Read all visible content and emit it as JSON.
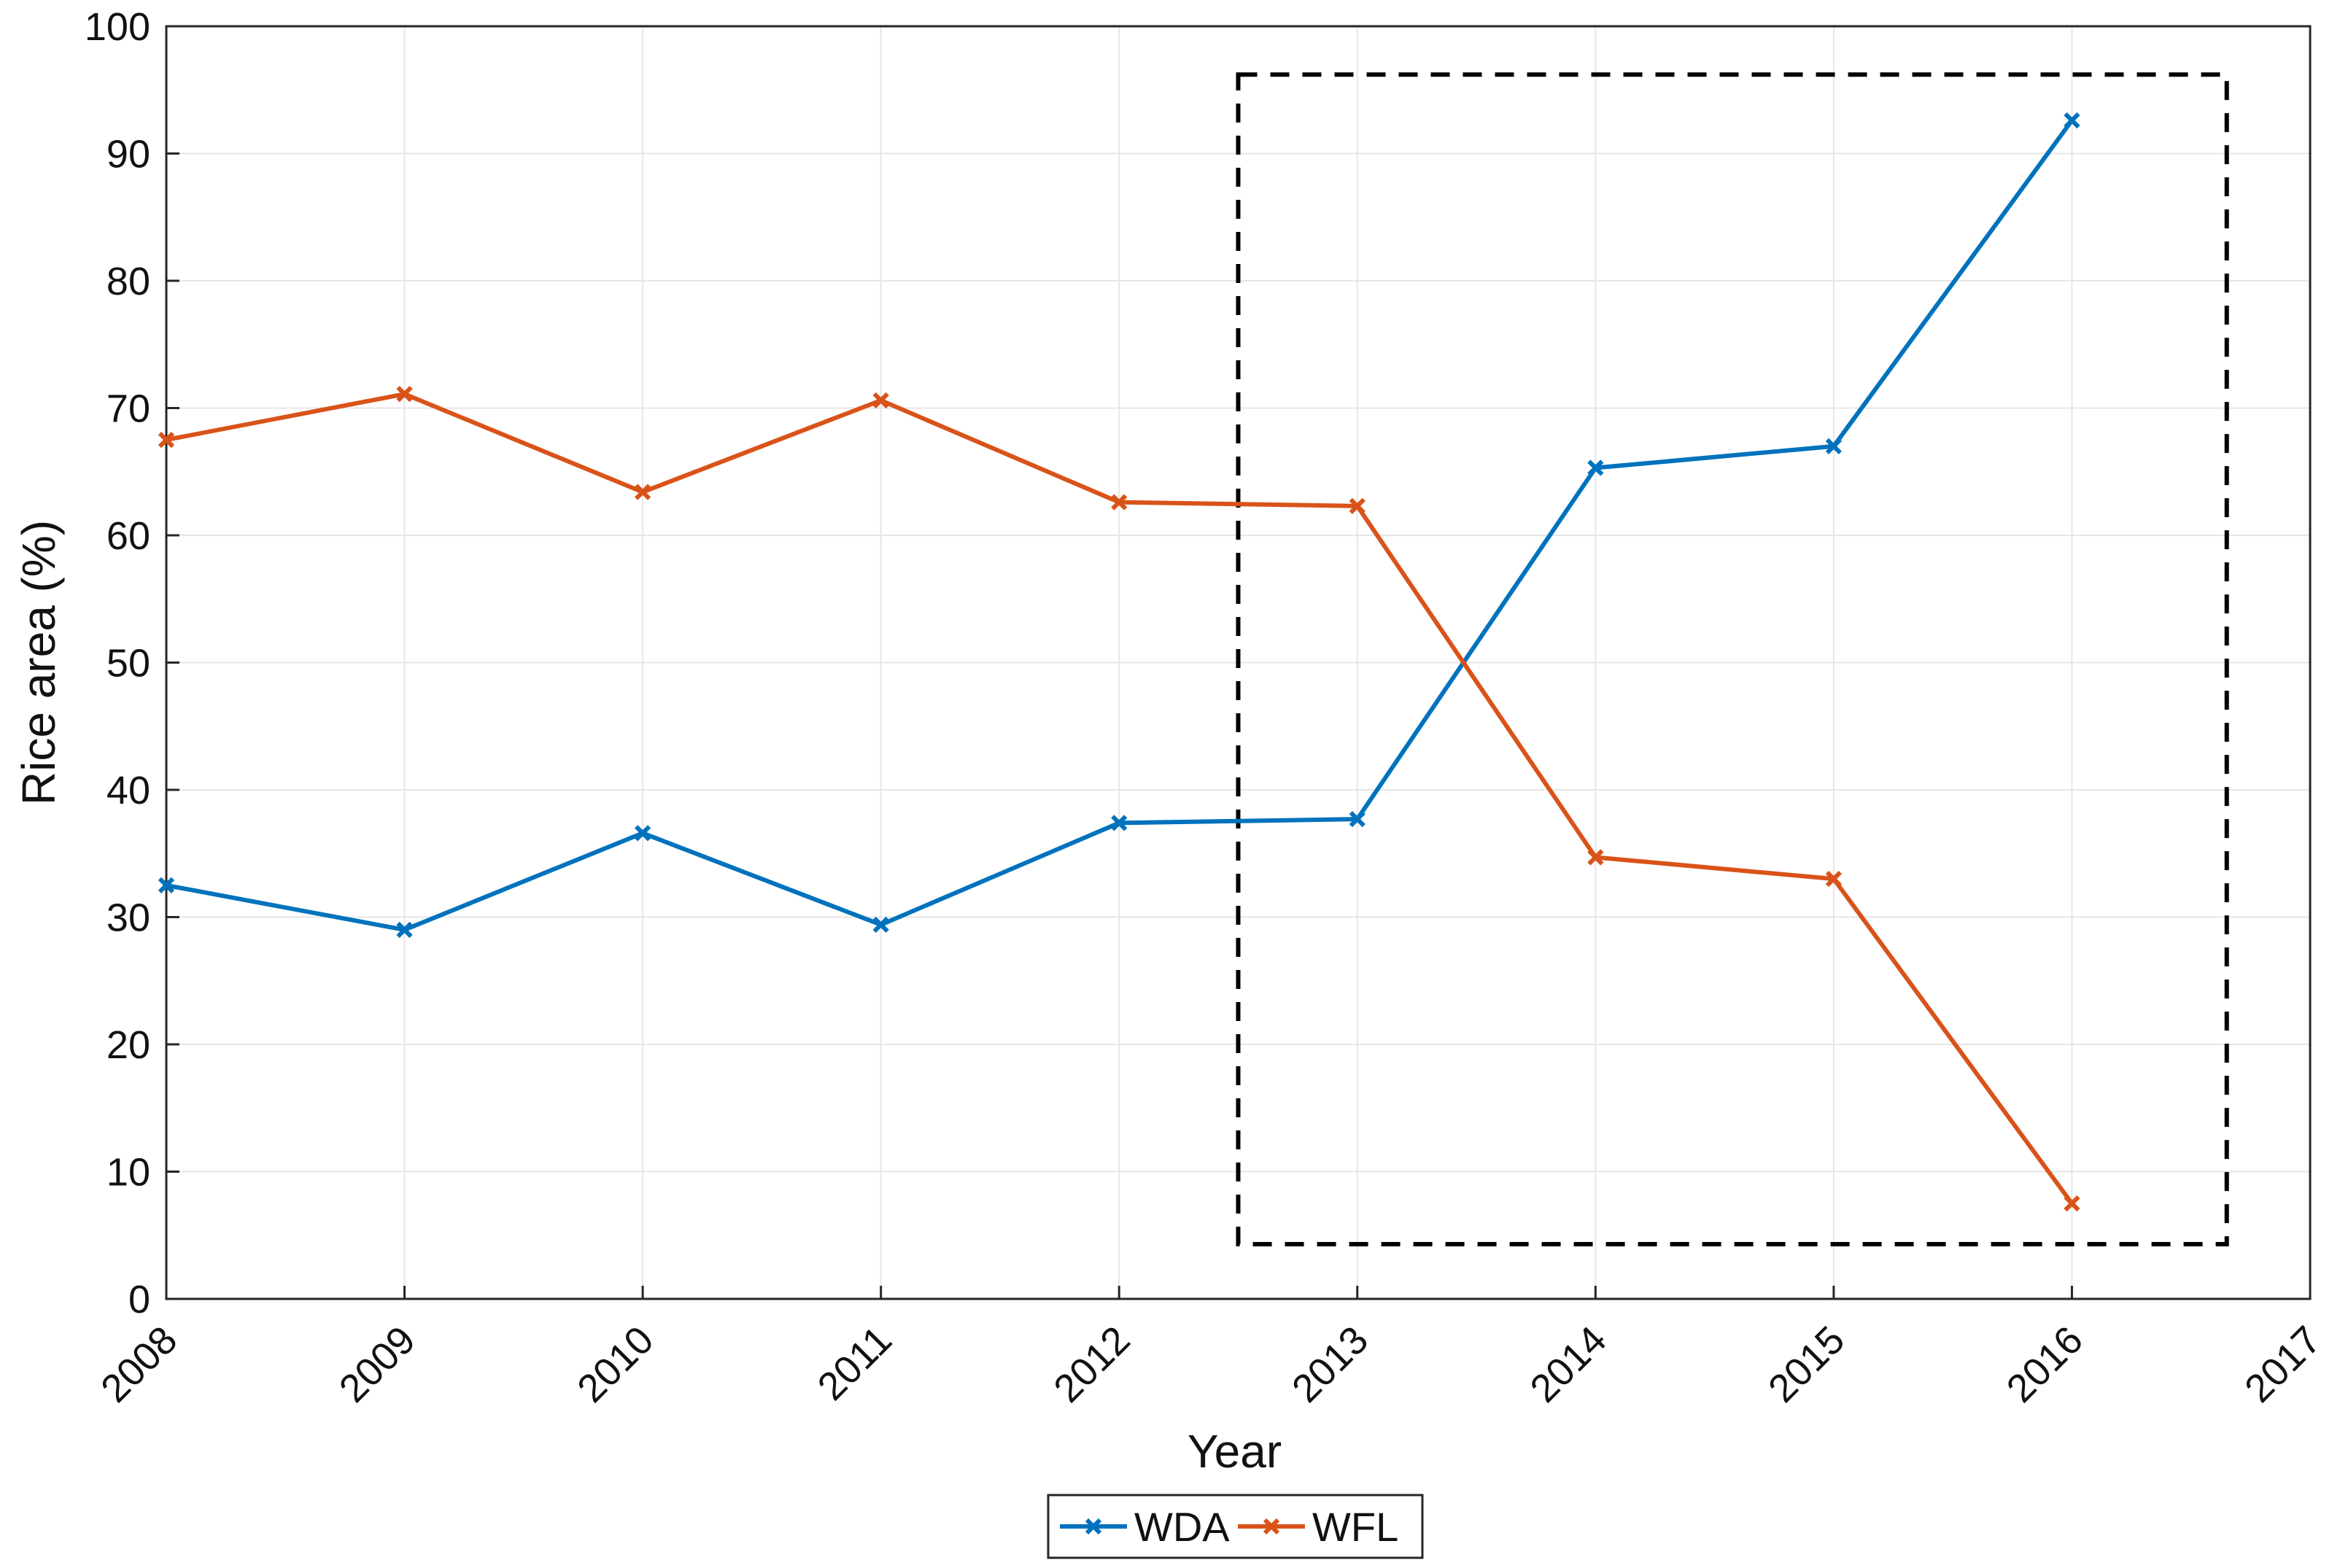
{
  "chart_data": {
    "type": "line",
    "title": "",
    "xlabel": "Year",
    "ylabel": "Rice area (%)",
    "x": [
      2008,
      2009,
      2010,
      2011,
      2012,
      2013,
      2014,
      2015,
      2016
    ],
    "xlim": [
      2008,
      2017
    ],
    "ylim": [
      0,
      100
    ],
    "xticks": [
      "2008",
      "2009",
      "2010",
      "2011",
      "2012",
      "2013",
      "2014",
      "2015",
      "2016",
      "2017"
    ],
    "yticks": [
      "0",
      "10",
      "20",
      "30",
      "40",
      "50",
      "60",
      "70",
      "80",
      "90",
      "100"
    ],
    "grid": true,
    "legend": "bottom-center",
    "series": [
      {
        "name": "WDA",
        "color": "#0072bd",
        "values": [
          32.5,
          29.0,
          36.6,
          29.4,
          37.4,
          37.7,
          65.3,
          67.0,
          92.6
        ]
      },
      {
        "name": "WFL",
        "color": "#d95319",
        "values": [
          67.5,
          71.1,
          63.4,
          70.6,
          62.6,
          62.3,
          34.7,
          33.0,
          7.5
        ]
      }
    ],
    "annotations": [
      {
        "type": "dashed-rectangle",
        "x_range": [
          2012.5,
          2016.65
        ],
        "y_range": [
          4.3,
          96.2
        ]
      }
    ]
  }
}
